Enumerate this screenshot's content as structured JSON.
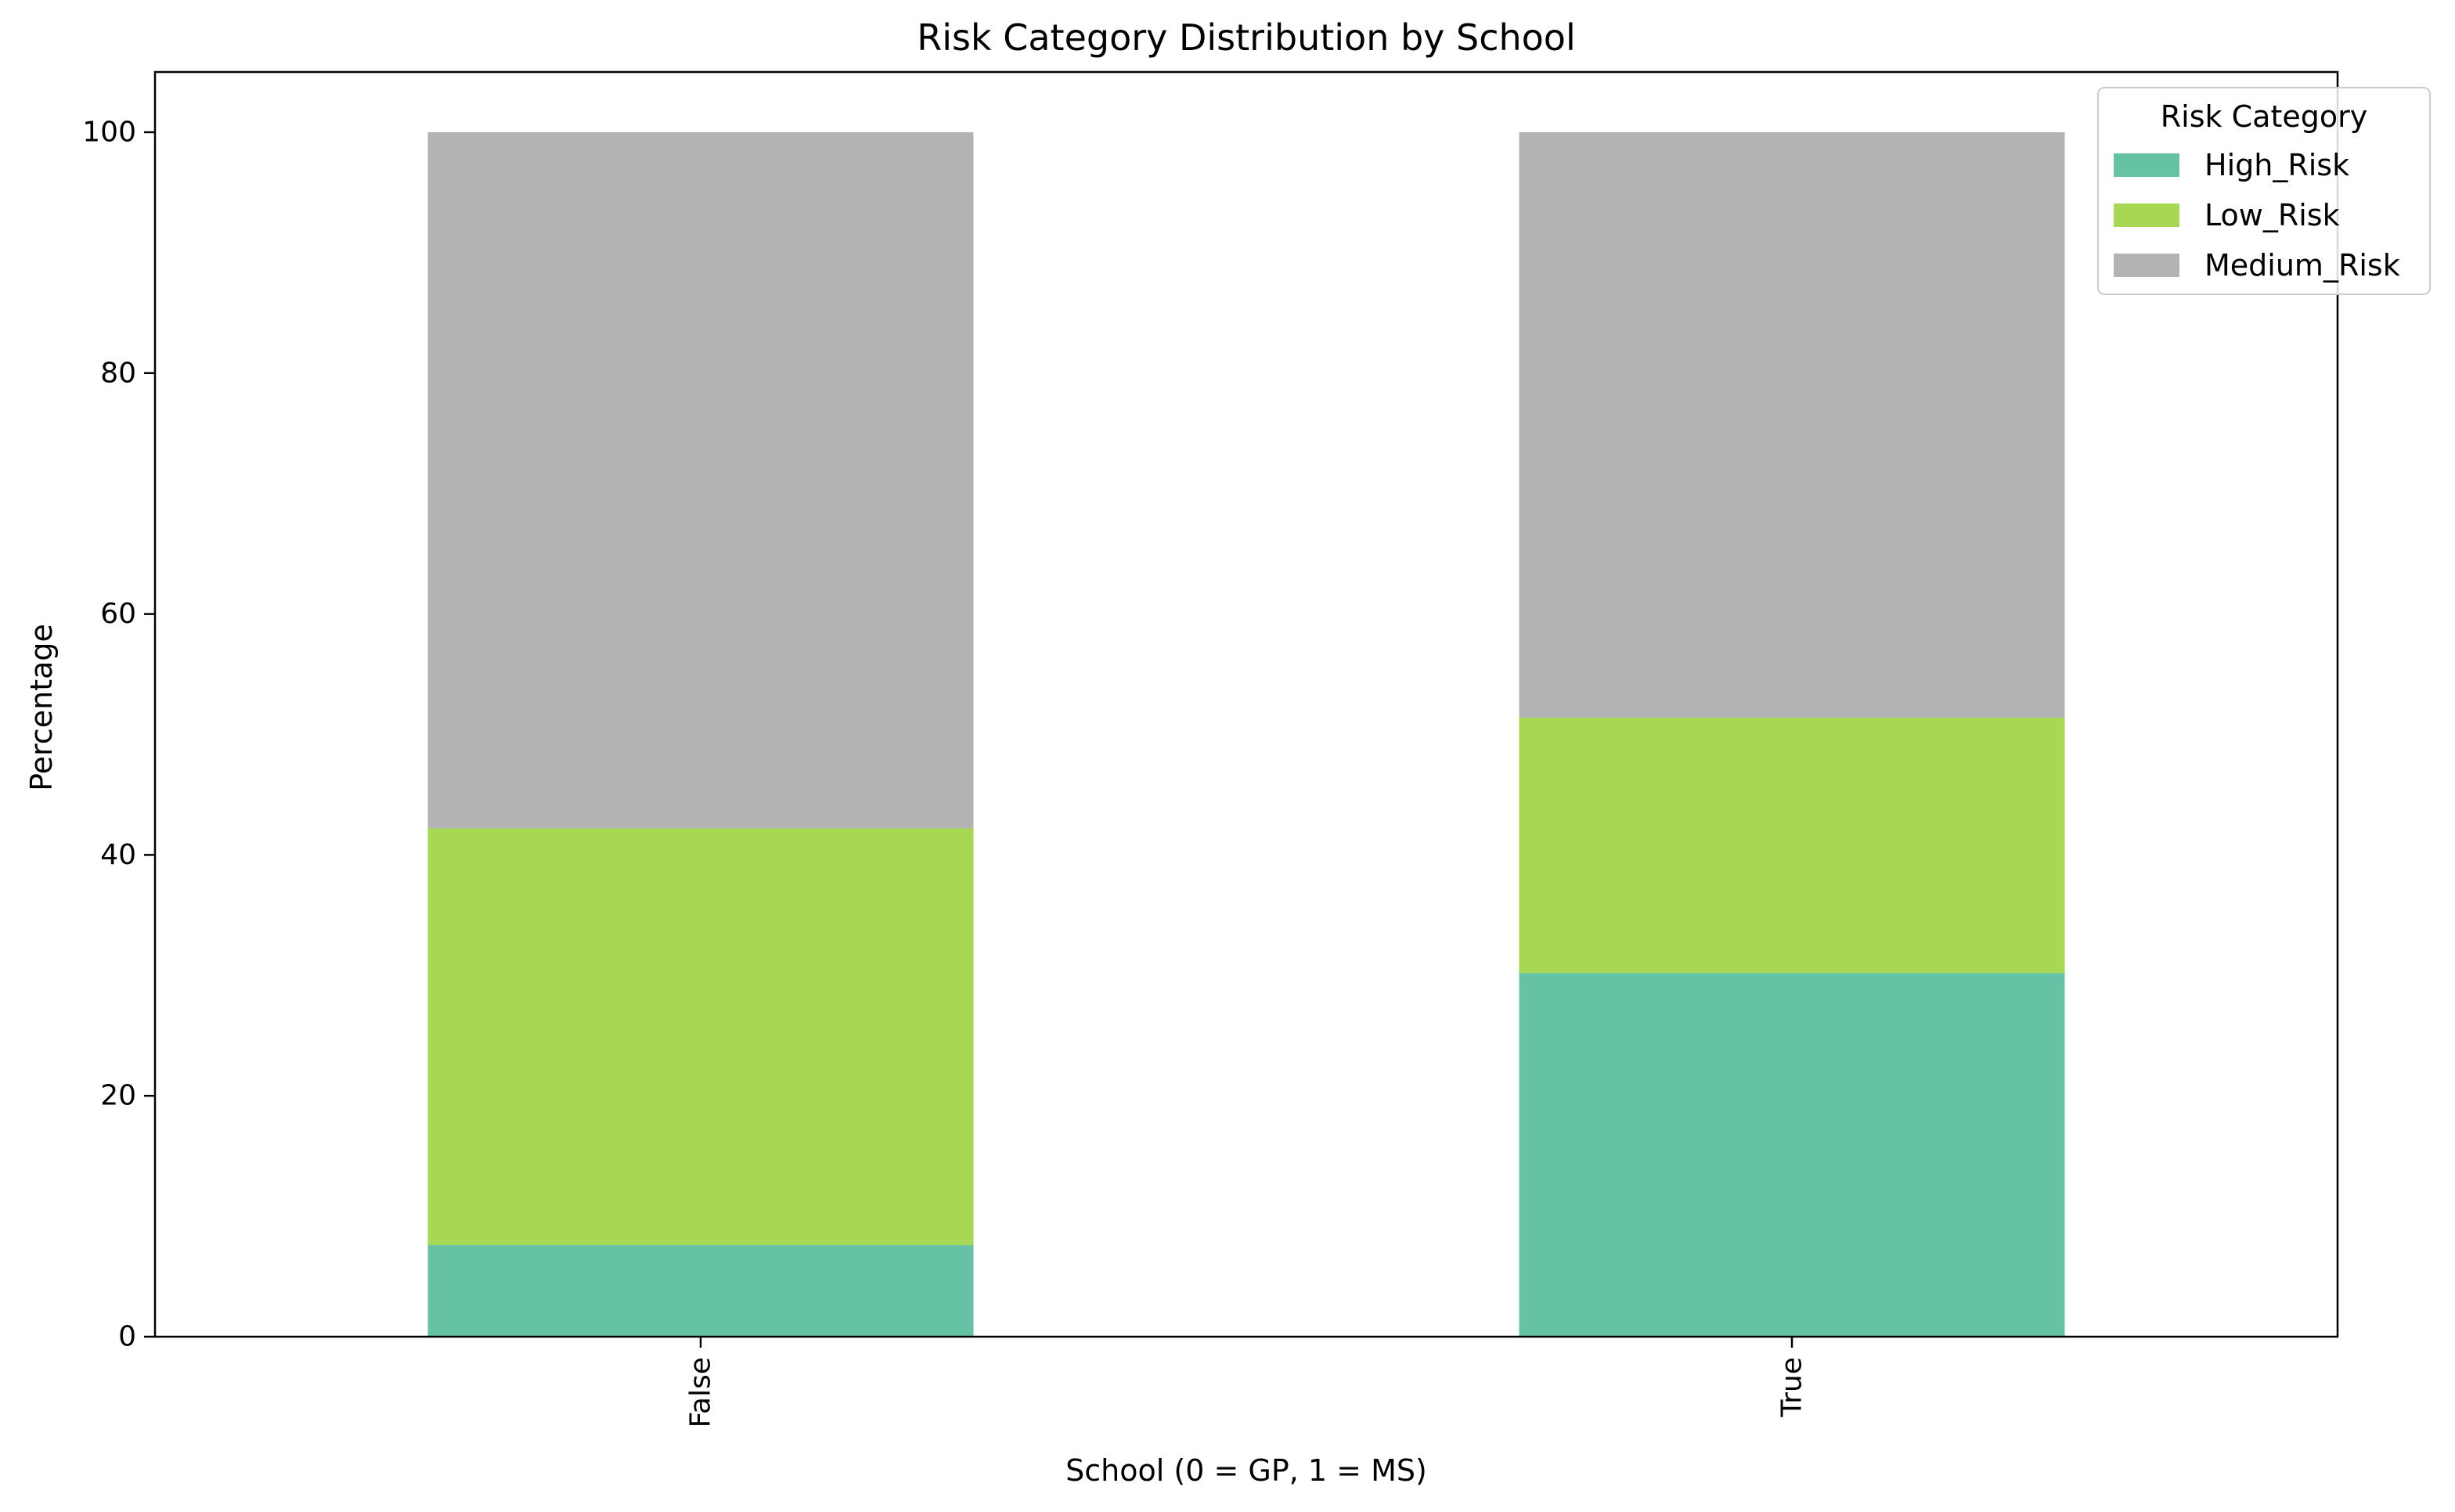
{
  "chart_data": {
    "type": "bar",
    "stacked": true,
    "title": "Risk Category Distribution by School",
    "xlabel": "School (0 = GP, 1 = MS)",
    "ylabel": "Percentage",
    "categories": [
      "False",
      "True"
    ],
    "ylim": [
      0,
      105
    ],
    "yticks": [
      0,
      20,
      40,
      60,
      80,
      100
    ],
    "grid": false,
    "legend": {
      "title": "Risk Category",
      "placement": "top-right"
    },
    "series": [
      {
        "name": "High_Risk",
        "color": "#66c2a5",
        "values": [
          7.6,
          30.2
        ]
      },
      {
        "name": "Low_Risk",
        "color": "#a6d854",
        "values": [
          34.6,
          21.2
        ]
      },
      {
        "name": "Medium_Risk",
        "color": "#b3b3b3",
        "values": [
          57.8,
          48.6
        ]
      }
    ]
  }
}
